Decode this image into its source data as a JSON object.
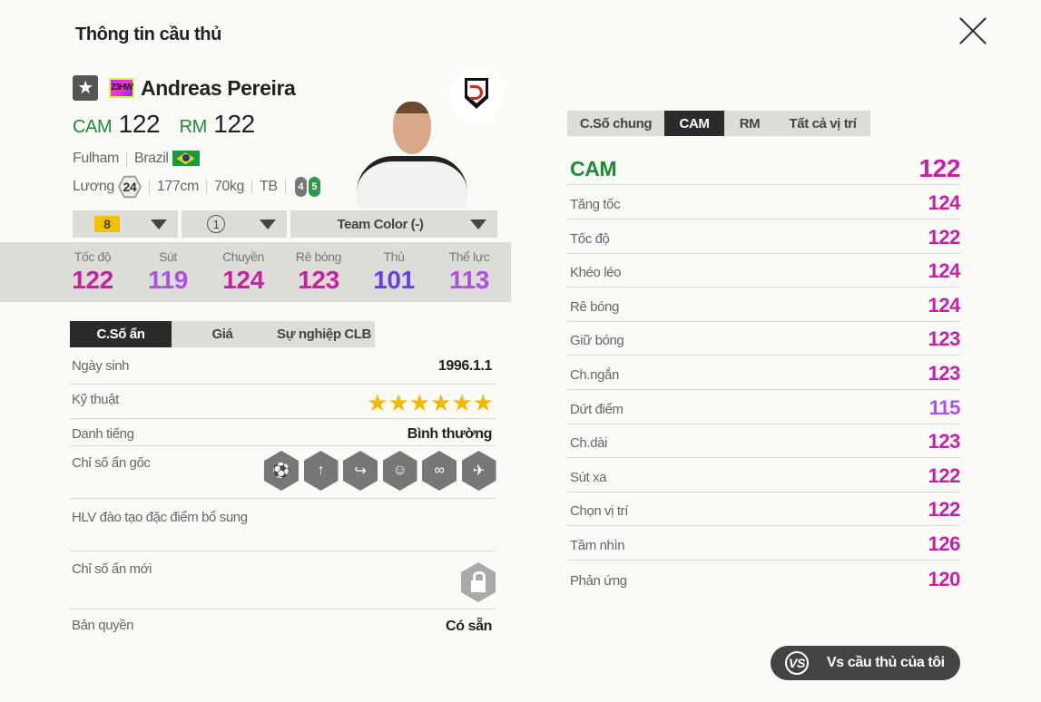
{
  "title": "Thông tin cầu thủ",
  "player": {
    "name": "Andreas Pereira",
    "season_badge": "23HW",
    "positions": [
      {
        "pos": "CAM",
        "ovr": "122"
      },
      {
        "pos": "RM",
        "ovr": "122"
      }
    ],
    "club": "Fulham",
    "nation": "Brazil",
    "salary_label": "Lương",
    "salary": "24",
    "height": "177cm",
    "weight": "70kg",
    "body": "TB",
    "weak_foot": "4",
    "strong_foot": "5"
  },
  "selectors": {
    "upgrade_level": "8",
    "training": "1",
    "team_color": "Team Color (-)"
  },
  "main_stats": [
    {
      "label": "Tốc độ",
      "value": "122",
      "color": "#c81fa5"
    },
    {
      "label": "Sút",
      "value": "119",
      "color": "#b04ee8"
    },
    {
      "label": "Chuyền",
      "value": "124",
      "color": "#c81fa5"
    },
    {
      "label": "Rê bóng",
      "value": "123",
      "color": "#c81fa5"
    },
    {
      "label": "Thủ",
      "value": "101",
      "color": "#6a3de8"
    },
    {
      "label": "Thể lực",
      "value": "113",
      "color": "#b04ee8"
    }
  ],
  "left_tabs": [
    "C.Số ẩn",
    "Giá",
    "Sự nghiệp CLB"
  ],
  "details": {
    "birth_label": "Ngày sinh",
    "birth": "1996.1.1",
    "skill_label": "Kỹ thuật",
    "skill_stars": 6,
    "fame_label": "Danh tiếng",
    "fame": "Bình thường",
    "traits_label": "Chỉ số ẩn gốc",
    "traits": [
      "power-header-icon",
      "long-shot-icon",
      "outside-pass-icon",
      "playmaker-icon",
      "dribbler-icon",
      "flair-icon"
    ],
    "coach_label": "HLV đào tạo đặc điểm bổ sung",
    "new_traits_label": "Chỉ số ẩn mới",
    "license_label": "Bản quyền",
    "license": "Có sẵn"
  },
  "right_tabs": [
    "C.Số chung",
    "CAM",
    "RM",
    "Tất cả vị trí"
  ],
  "position_header": {
    "pos": "CAM",
    "value": "122",
    "color": "#c81fa5"
  },
  "position_stats": [
    {
      "label": "Tăng tốc",
      "value": "124",
      "color": "#c81fa5"
    },
    {
      "label": "Tốc độ",
      "value": "122",
      "color": "#c81fa5"
    },
    {
      "label": "Khéo léo",
      "value": "124",
      "color": "#c81fa5"
    },
    {
      "label": "Rê bóng",
      "value": "124",
      "color": "#c81fa5"
    },
    {
      "label": "Giữ bóng",
      "value": "123",
      "color": "#c81fa5"
    },
    {
      "label": "Ch.ngắn",
      "value": "123",
      "color": "#c81fa5"
    },
    {
      "label": "Dứt điểm",
      "value": "115",
      "color": "#b04ee8"
    },
    {
      "label": "Ch.dài",
      "value": "123",
      "color": "#c81fa5"
    },
    {
      "label": "Sút xa",
      "value": "122",
      "color": "#c81fa5"
    },
    {
      "label": "Chọn vị trí",
      "value": "122",
      "color": "#c81fa5"
    },
    {
      "label": "Tầm nhìn",
      "value": "126",
      "color": "#c81fa5"
    },
    {
      "label": "Phản ứng",
      "value": "120",
      "color": "#c81fa5"
    }
  ],
  "compare_button": "Vs cầu thủ của tôi"
}
